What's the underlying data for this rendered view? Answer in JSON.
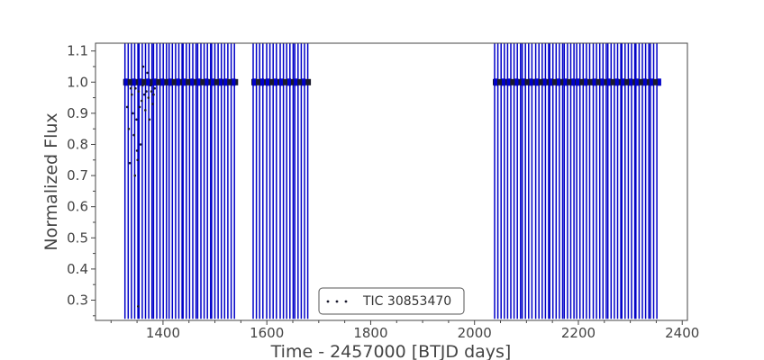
{
  "chart_data": {
    "type": "scatter",
    "title": "",
    "xlabel": "Time - 2457000 [BTJD days]",
    "ylabel": "Normalized Flux",
    "xlim": [
      1270,
      2410
    ],
    "ylim": [
      0.235,
      1.125
    ],
    "xticks": [
      1400,
      1600,
      1800,
      2000,
      2200,
      2400
    ],
    "yticks": [
      0.3,
      0.4,
      0.5,
      0.6,
      0.7,
      0.8,
      0.9,
      1.0,
      1.1
    ],
    "xtick_labels": [
      "1400",
      "1600",
      "1800",
      "2000",
      "2200",
      "2400"
    ],
    "ytick_labels": [
      "0.3",
      "0.4",
      "0.5",
      "0.6",
      "0.7",
      "0.8",
      "0.9",
      "1.0",
      "1.1"
    ],
    "grid": false,
    "legend": {
      "position": "bottom-center",
      "entries": [
        "TIC 30853470"
      ]
    },
    "colors": {
      "errorbars": "#0000c8",
      "points": "#1a1a2e",
      "axes": "#444444"
    },
    "series": [
      {
        "name": "TIC 30853470",
        "segments": [
          [
            1325,
            1355
          ],
          [
            1352,
            1380
          ],
          [
            1380,
            1411
          ],
          [
            1410,
            1437
          ],
          [
            1437,
            1465
          ],
          [
            1465,
            1492
          ],
          [
            1492,
            1517
          ],
          [
            1517,
            1543
          ],
          [
            1572,
            1598
          ],
          [
            1598,
            1624
          ],
          [
            1624,
            1652
          ],
          [
            1652,
            1683
          ],
          [
            2037,
            2062
          ],
          [
            2062,
            2090
          ],
          [
            2090,
            2116
          ],
          [
            2116,
            2143
          ],
          [
            2143,
            2171
          ],
          [
            2171,
            2195
          ],
          [
            2195,
            2227
          ],
          [
            2227,
            2255
          ],
          [
            2255,
            2282
          ],
          [
            2282,
            2309
          ],
          [
            2309,
            2337
          ],
          [
            2337,
            2357
          ]
        ],
        "baseline_flux": 1.0,
        "errorbar_low": 0.24,
        "errorbar_high": 1.125,
        "scatter_points": [
          [
            1331,
            0.92
          ],
          [
            1334,
            0.85
          ],
          [
            1336,
            0.74
          ],
          [
            1338,
            0.98
          ],
          [
            1340,
            0.96
          ],
          [
            1342,
            0.9
          ],
          [
            1344,
            0.83
          ],
          [
            1346,
            0.7
          ],
          [
            1347,
            0.98
          ],
          [
            1349,
            0.88
          ],
          [
            1350,
            0.78
          ],
          [
            1351,
            0.75
          ],
          [
            1352,
            0.28
          ],
          [
            1353,
            0.97
          ],
          [
            1355,
            0.92
          ],
          [
            1357,
            0.8
          ],
          [
            1359,
            0.94
          ],
          [
            1361,
            0.99
          ],
          [
            1362,
            1.05
          ],
          [
            1364,
            0.96
          ],
          [
            1366,
            0.91
          ],
          [
            1368,
            0.97
          ],
          [
            1370,
            1.03
          ],
          [
            1372,
            0.95
          ],
          [
            1374,
            0.88
          ],
          [
            1376,
            0.99
          ],
          [
            1378,
            0.97
          ],
          [
            1380,
            0.93
          ],
          [
            1382,
            0.96
          ],
          [
            1384,
            0.98
          ]
        ]
      }
    ]
  }
}
